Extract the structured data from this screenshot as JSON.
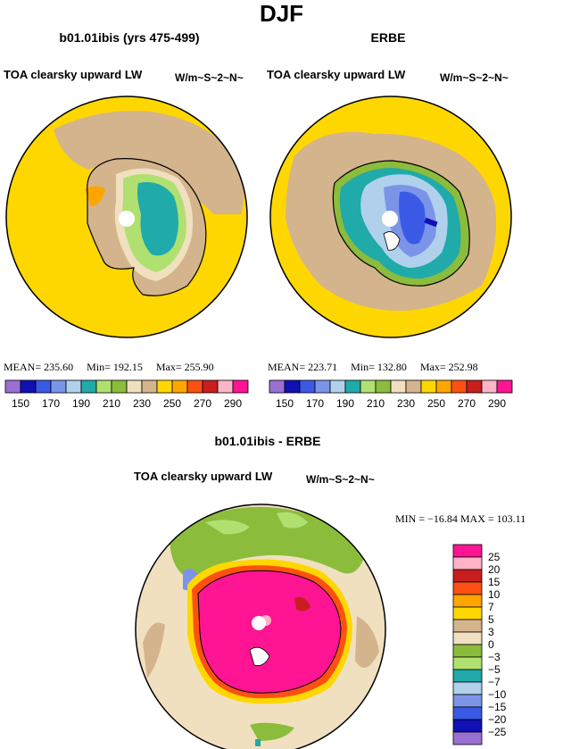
{
  "figure": {
    "title": "DJF",
    "panels": [
      {
        "title": "b01.01ibis (yrs 475-499)",
        "field": "TOA clearsky upward LW",
        "units": "W/m~S~2~N~",
        "stats": {
          "mean_label": "MEAN=",
          "mean": "235.60",
          "min_label": "Min=",
          "min": "192.15",
          "max_label": "Max=",
          "max": "255.90"
        }
      },
      {
        "title": "ERBE",
        "field": "TOA clearsky upward LW",
        "units": "W/m~S~2~N~",
        "stats": {
          "mean_label": "MEAN=",
          "mean": "223.71",
          "min_label": "Min=",
          "min": "132.80",
          "max_label": "Max=",
          "max": "252.98"
        }
      }
    ],
    "difference": {
      "title": "b01.01ibis - ERBE",
      "field": "TOA clearsky upward LW",
      "units": "W/m~S~2~N~",
      "minmax_text": "MIN = −16.84 MAX = 103.11"
    }
  },
  "chart_data": [
    {
      "type": "heatmap",
      "title": "b01.01ibis (yrs 475-499)",
      "subtitle": "TOA clearsky upward LW",
      "units": "W/m~S~2~N~",
      "projection": "south polar stereographic",
      "stats": {
        "mean": 235.6,
        "min": 192.15,
        "max": 255.9
      },
      "colorbar_levels": [
        150,
        160,
        170,
        180,
        190,
        200,
        210,
        220,
        230,
        240,
        250,
        260,
        270,
        280,
        290
      ],
      "colorbar_tick_labels": [
        "150",
        "170",
        "190",
        "210",
        "230",
        "250",
        "270",
        "290"
      ],
      "colorbar_colors": [
        "#9a6fd4",
        "#1010b4",
        "#3a5ae6",
        "#7c94e8",
        "#b0d0ec",
        "#20aaaa",
        "#b0e070",
        "#8cbc3c",
        "#f0e0c0",
        "#d4b48c",
        "#ffd700",
        "#ffa500",
        "#ff5014",
        "#c81e1e",
        "#ffb4c8",
        "#ff1493"
      ]
    },
    {
      "type": "heatmap",
      "title": "ERBE",
      "subtitle": "TOA clearsky upward LW",
      "units": "W/m~S~2~N~",
      "projection": "south polar stereographic",
      "stats": {
        "mean": 223.71,
        "min": 132.8,
        "max": 252.98
      },
      "colorbar_levels": [
        150,
        160,
        170,
        180,
        190,
        200,
        210,
        220,
        230,
        240,
        250,
        260,
        270,
        280,
        290
      ],
      "colorbar_tick_labels": [
        "150",
        "170",
        "190",
        "210",
        "230",
        "250",
        "270",
        "290"
      ],
      "colorbar_colors": [
        "#9a6fd4",
        "#1010b4",
        "#3a5ae6",
        "#7c94e8",
        "#b0d0ec",
        "#20aaaa",
        "#b0e070",
        "#8cbc3c",
        "#f0e0c0",
        "#d4b48c",
        "#ffd700",
        "#ffa500",
        "#ff5014",
        "#c81e1e",
        "#ffb4c8",
        "#ff1493"
      ]
    },
    {
      "type": "heatmap",
      "title": "b01.01ibis - ERBE",
      "subtitle": "TOA clearsky upward LW",
      "units": "W/m~S~2~N~",
      "projection": "south polar stereographic",
      "stats": {
        "min": -16.84,
        "max": 103.11
      },
      "colorbar_tick_labels": [
        "25",
        "20",
        "15",
        "10",
        "7",
        "5",
        "3",
        "0",
        "−3",
        "−5",
        "−7",
        "−10",
        "−15",
        "−20",
        "−25"
      ],
      "colorbar_colors": [
        "#ff1493",
        "#ffb4c8",
        "#c81e1e",
        "#ff5014",
        "#ffa500",
        "#ffd700",
        "#d4b48c",
        "#f0e0c0",
        "#8cbc3c",
        "#b0e070",
        "#20aaaa",
        "#b0d0ec",
        "#7c94e8",
        "#3a5ae6",
        "#1010b4",
        "#9a6fd4"
      ]
    }
  ]
}
